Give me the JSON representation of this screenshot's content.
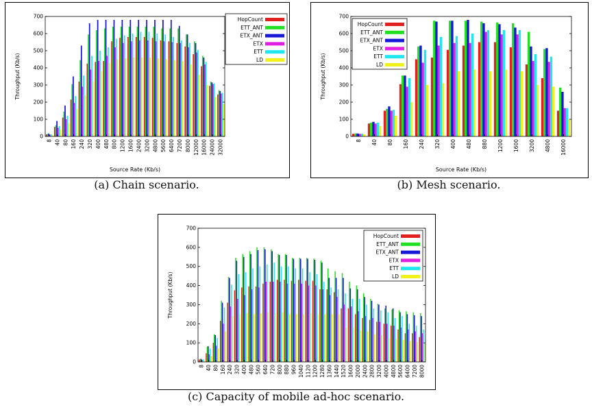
{
  "series_colors": [
    "#e32020",
    "#21e021",
    "#1717d8",
    "#e020e0",
    "#20e6f2",
    "#f2f21a"
  ],
  "chart_data": [
    {
      "type": "bar",
      "caption": "(a)  Chain scenario.",
      "xlabel": "Source Rate (Kb/s)",
      "ylabel": "Throughput (Kb/s)",
      "ylim": [
        0,
        700
      ],
      "yticks": [
        "0",
        "100",
        "200",
        "300",
        "400",
        "500",
        "600",
        "700"
      ],
      "grid": false,
      "legend_position": "top-right",
      "categories": [
        "8",
        "40",
        "80",
        "160",
        "240",
        "320",
        "400",
        "480",
        "800",
        "1200",
        "1600",
        "2400",
        "3200",
        "4800",
        "5600",
        "6400",
        "7200",
        "8000",
        "12000",
        "16000",
        "24000",
        "32000"
      ],
      "series": [
        {
          "name": "HopCount",
          "values": [
            12,
            55,
            110,
            215,
            320,
            425,
            435,
            440,
            555,
            575,
            580,
            580,
            580,
            575,
            560,
            555,
            545,
            525,
            480,
            410,
            295,
            245
          ]
        },
        {
          "name": "ETT_ANT",
          "values": [
            15,
            65,
            145,
            305,
            445,
            595,
            620,
            630,
            640,
            640,
            640,
            640,
            640,
            640,
            630,
            630,
            630,
            595,
            555,
            470,
            320,
            270
          ]
        },
        {
          "name": "ETX_ANT",
          "values": [
            17,
            90,
            180,
            350,
            530,
            660,
            680,
            680,
            680,
            680,
            680,
            680,
            680,
            680,
            680,
            680,
            645,
            595,
            545,
            460,
            315,
            265
          ]
        },
        {
          "name": "ETX",
          "values": [
            10,
            50,
            100,
            195,
            290,
            390,
            440,
            470,
            520,
            545,
            555,
            560,
            560,
            555,
            555,
            550,
            545,
            520,
            490,
            420,
            305,
            250
          ]
        },
        {
          "name": "ETT",
          "values": [
            12,
            60,
            120,
            235,
            355,
            470,
            500,
            520,
            570,
            590,
            600,
            610,
            610,
            600,
            595,
            580,
            560,
            545,
            505,
            435,
            310,
            255
          ]
        },
        {
          "name": "LD",
          "values": [
            8,
            40,
            80,
            160,
            240,
            320,
            380,
            430,
            450,
            455,
            460,
            460,
            460,
            455,
            450,
            445,
            440,
            420,
            360,
            300,
            230,
            190
          ]
        }
      ]
    },
    {
      "type": "bar",
      "caption": "(b)  Mesh scenario.",
      "xlabel": "Source Rate (Kb/s)",
      "ylabel": "Throughput (Kb/s)",
      "ylim": [
        0,
        700
      ],
      "yticks": [
        "0",
        "100",
        "200",
        "300",
        "400",
        "500",
        "600",
        "700"
      ],
      "grid": false,
      "legend_position": "top-left",
      "categories": [
        "8",
        "40",
        "80",
        "160",
        "240",
        "320",
        "400",
        "480",
        "880",
        "1200",
        "1600",
        "3200",
        "4800",
        "16000"
      ],
      "series": [
        {
          "name": "HopCount",
          "values": [
            15,
            75,
            150,
            305,
            450,
            460,
            505,
            530,
            550,
            550,
            520,
            420,
            340,
            150
          ]
        },
        {
          "name": "ETT_ANT",
          "values": [
            17,
            80,
            160,
            355,
            525,
            675,
            675,
            675,
            670,
            665,
            660,
            610,
            510,
            285
          ]
        },
        {
          "name": "ETX_ANT",
          "values": [
            17,
            85,
            175,
            355,
            530,
            670,
            675,
            680,
            660,
            655,
            635,
            525,
            515,
            260
          ]
        },
        {
          "name": "ETX",
          "values": [
            15,
            75,
            150,
            290,
            430,
            530,
            545,
            545,
            610,
            595,
            595,
            440,
            435,
            165
          ]
        },
        {
          "name": "ETT",
          "values": [
            16,
            80,
            155,
            340,
            505,
            580,
            585,
            600,
            620,
            620,
            620,
            480,
            465,
            165
          ]
        },
        {
          "name": "LD",
          "values": [
            13,
            60,
            120,
            200,
            300,
            310,
            380,
            390,
            380,
            390,
            380,
            300,
            290,
            100
          ]
        }
      ]
    },
    {
      "type": "bar",
      "caption": "(c)  Capacity of mobile ad-hoc scenario.",
      "xlabel": "",
      "ylabel": "Throughput (Kb/s)",
      "ylim": [
        0,
        700
      ],
      "yticks": [
        "0",
        "100",
        "200",
        "300",
        "400",
        "500",
        "600",
        "700"
      ],
      "grid": false,
      "legend_position": "top-right",
      "categories": [
        "8",
        "40",
        "80",
        "160",
        "240",
        "320",
        "400",
        "480",
        "560",
        "640",
        "720",
        "800",
        "880",
        "960",
        "1040",
        "1120",
        "1200",
        "1280",
        "1360",
        "1440",
        "1520",
        "1600",
        "2000",
        "2400",
        "2800",
        "3200",
        "4000",
        "4800",
        "5600",
        "6400",
        "7200",
        "8000"
      ],
      "series": [
        {
          "name": "HopCount",
          "values": [
            12,
            45,
            100,
            215,
            310,
            375,
            390,
            395,
            395,
            410,
            420,
            430,
            430,
            425,
            430,
            425,
            425,
            380,
            380,
            365,
            280,
            280,
            250,
            230,
            220,
            210,
            200,
            190,
            170,
            150,
            150,
            130
          ]
        },
        {
          "name": "ETT_ANT",
          "values": [
            15,
            80,
            145,
            320,
            445,
            545,
            565,
            580,
            600,
            600,
            590,
            565,
            565,
            545,
            545,
            545,
            540,
            530,
            490,
            475,
            465,
            420,
            400,
            360,
            330,
            305,
            280,
            275,
            270,
            265,
            260,
            255
          ]
        },
        {
          "name": "ETX_ANT",
          "values": [
            16,
            82,
            140,
            310,
            440,
            530,
            550,
            565,
            585,
            590,
            580,
            560,
            560,
            540,
            540,
            540,
            535,
            520,
            440,
            440,
            440,
            385,
            380,
            340,
            320,
            300,
            295,
            280,
            260,
            250,
            245,
            240
          ]
        },
        {
          "name": "ETX",
          "values": [
            10,
            40,
            85,
            200,
            290,
            330,
            350,
            380,
            390,
            420,
            420,
            420,
            410,
            410,
            410,
            400,
            400,
            380,
            350,
            340,
            300,
            290,
            265,
            240,
            230,
            210,
            200,
            190,
            180,
            170,
            160,
            150
          ]
        },
        {
          "name": "ETT",
          "values": [
            13,
            70,
            125,
            285,
            405,
            460,
            470,
            490,
            500,
            510,
            520,
            500,
            500,
            490,
            490,
            470,
            460,
            420,
            390,
            380,
            360,
            330,
            330,
            300,
            280,
            270,
            260,
            230,
            240,
            200,
            190,
            170
          ]
        },
        {
          "name": "LD",
          "values": [
            8,
            30,
            70,
            160,
            240,
            250,
            255,
            250,
            255,
            260,
            255,
            260,
            250,
            250,
            250,
            255,
            250,
            250,
            250,
            250,
            180,
            180,
            165,
            160,
            145,
            140,
            125,
            120,
            115,
            110,
            105,
            100
          ]
        }
      ]
    }
  ]
}
